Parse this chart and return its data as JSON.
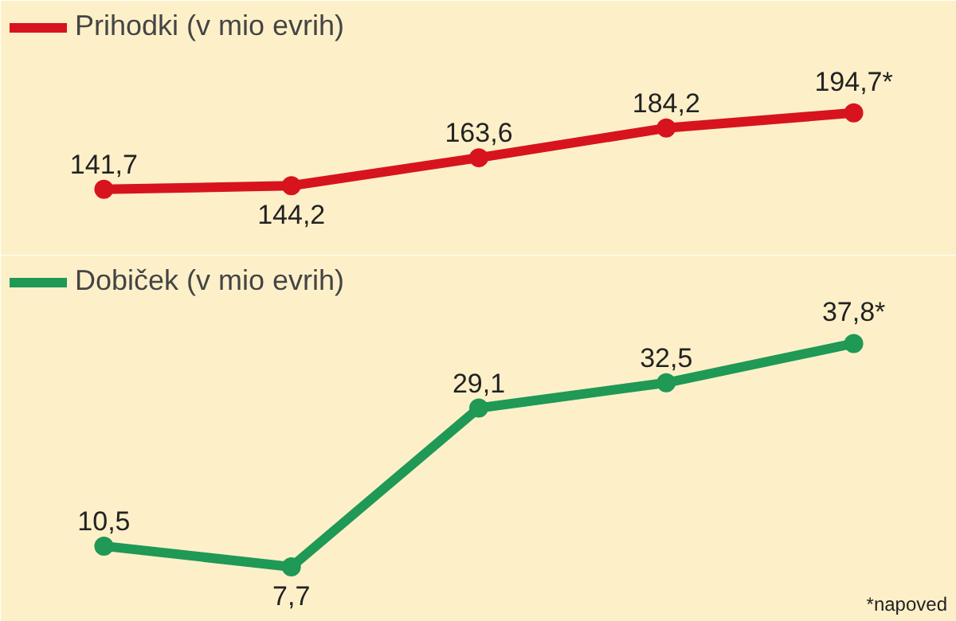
{
  "chart_data": [
    {
      "type": "line",
      "categories": [
        null,
        null,
        null,
        null,
        null
      ],
      "series": [
        {
          "name": "Prihodki (v mio evrih)",
          "color": "#d7141e",
          "values": [
            141.7,
            144.2,
            163.6,
            184.2,
            194.7
          ],
          "value_labels": [
            "141,7",
            "144,2",
            "163,6",
            "184,2",
            "194,7*"
          ]
        }
      ],
      "marker": "circle",
      "line_style": "solid",
      "legend": "top left"
    },
    {
      "type": "line",
      "categories": [
        null,
        null,
        null,
        null,
        null
      ],
      "series": [
        {
          "name": "Dobiček (v mio evrih)",
          "color": "#1f9955",
          "values": [
            10.5,
            7.7,
            29.1,
            32.5,
            37.8
          ],
          "value_labels": [
            "10,5",
            "7,7",
            "29,1",
            "32,5",
            "37,8*"
          ]
        }
      ],
      "marker": "circle",
      "line_style": "solid",
      "legend": "top left",
      "annotations": [
        "*napoved"
      ]
    }
  ]
}
